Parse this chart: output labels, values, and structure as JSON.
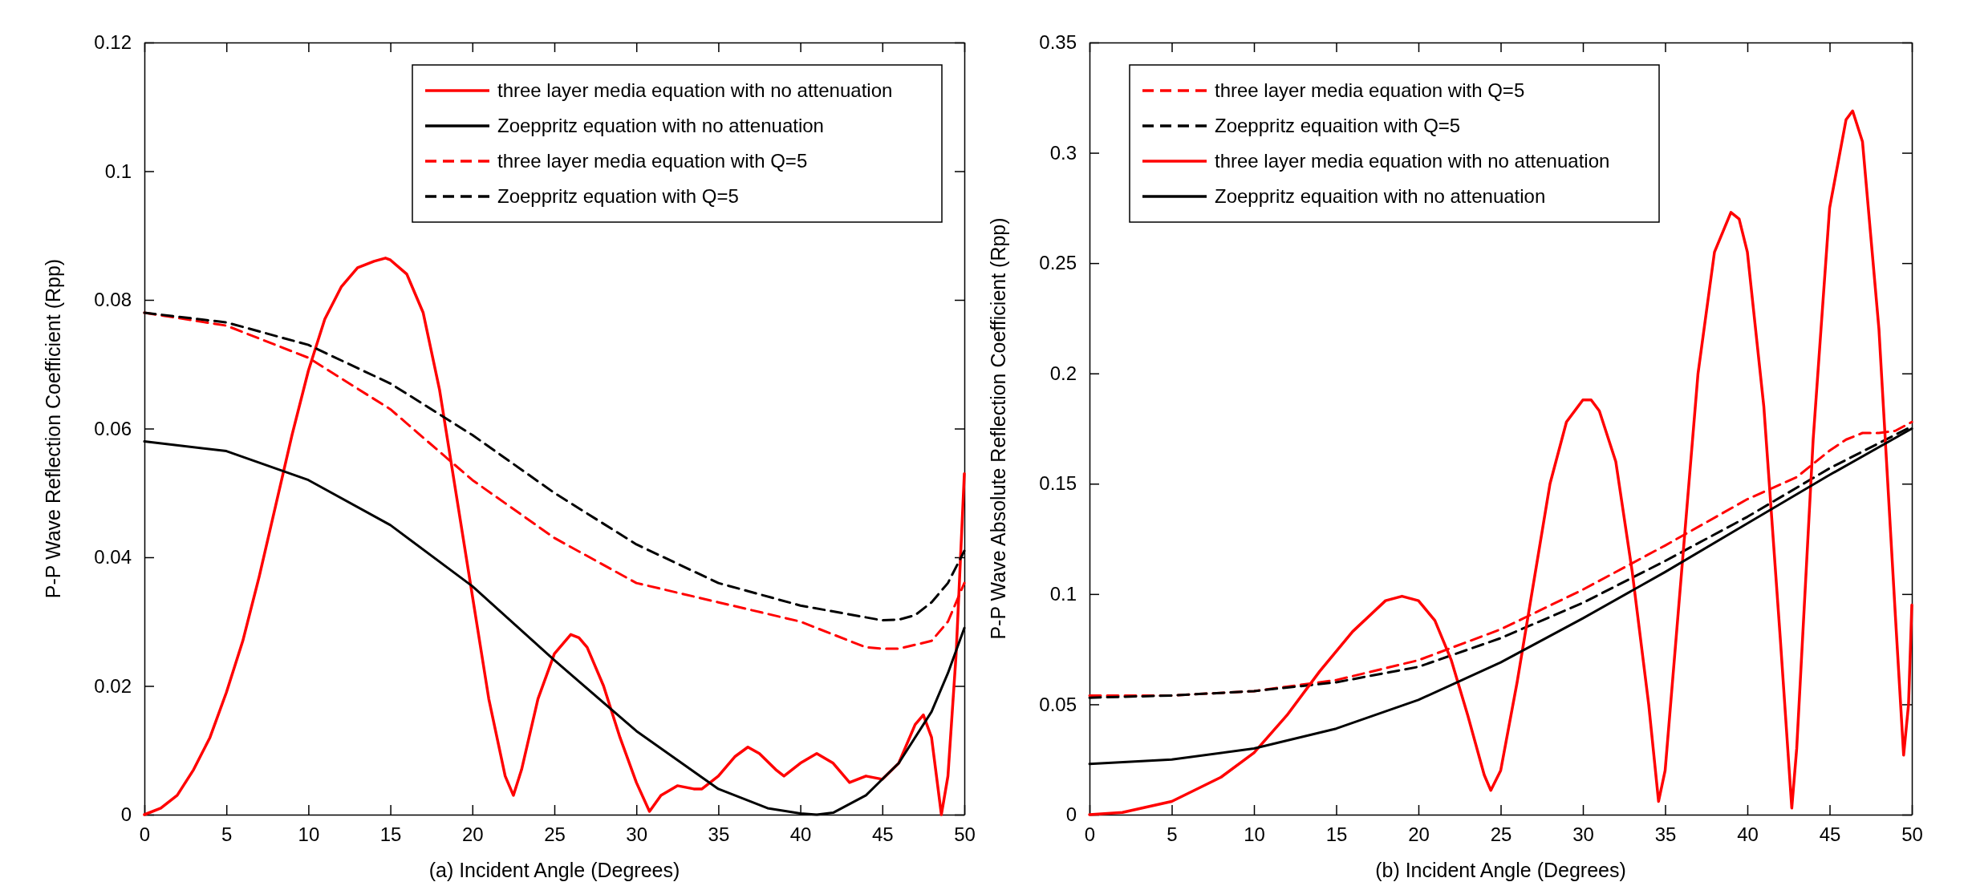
{
  "chart_data": [
    {
      "type": "line",
      "xlabel": "(a) Incident Angle (Degrees)",
      "ylabel": "P-P Wave Reflection Coefficient (Rpp)",
      "xlim": [
        0,
        50
      ],
      "xticks": [
        0,
        5,
        10,
        15,
        20,
        25,
        30,
        35,
        40,
        45,
        50
      ],
      "ylim": [
        0,
        0.12
      ],
      "yticks": [
        0,
        0.02,
        0.04,
        0.06,
        0.08,
        0.1,
        0.12
      ],
      "grid": false,
      "legend": "top right",
      "series": [
        {
          "name": "three layer media equation with no attenuation",
          "color": "#ff0000",
          "line_style": "solid",
          "x": [
            0,
            1,
            2,
            3,
            4,
            5,
            6,
            7,
            8,
            9,
            10,
            11,
            12,
            13,
            14,
            14.7,
            15,
            16,
            17,
            18,
            19,
            20,
            21,
            22,
            22.5,
            23,
            24,
            25,
            26,
            26.5,
            27,
            28,
            29,
            30,
            30.8,
            31.5,
            32.5,
            33.5,
            34,
            35,
            36,
            36.8,
            37.5,
            38.5,
            39,
            40,
            41,
            42,
            43,
            44,
            45,
            46,
            47,
            47.5,
            48,
            48.6,
            49,
            49.5,
            50
          ],
          "values": [
            0,
            0.001,
            0.003,
            0.007,
            0.012,
            0.019,
            0.027,
            0.037,
            0.048,
            0.059,
            0.069,
            0.077,
            0.082,
            0.085,
            0.086,
            0.0865,
            0.0862,
            0.084,
            0.078,
            0.066,
            0.05,
            0.034,
            0.018,
            0.006,
            0.003,
            0.007,
            0.018,
            0.025,
            0.028,
            0.0275,
            0.026,
            0.02,
            0.012,
            0.005,
            0.0005,
            0.003,
            0.0045,
            0.004,
            0.004,
            0.006,
            0.009,
            0.0105,
            0.0095,
            0.007,
            0.006,
            0.008,
            0.0095,
            0.008,
            0.005,
            0.006,
            0.0055,
            0.008,
            0.014,
            0.0155,
            0.012,
            0,
            0.006,
            0.025,
            0.053
          ]
        },
        {
          "name": "Zoeppritz equation with no attenuation",
          "color": "#000000",
          "line_style": "solid",
          "x": [
            0,
            5,
            10,
            15,
            20,
            25,
            30,
            35,
            38,
            40,
            41,
            42,
            44,
            46,
            48,
            49,
            50
          ],
          "values": [
            0.058,
            0.0565,
            0.052,
            0.045,
            0.0355,
            0.024,
            0.013,
            0.004,
            0.001,
            0.0002,
            0,
            0.0003,
            0.003,
            0.008,
            0.016,
            0.022,
            0.029
          ]
        },
        {
          "name": "three layer media equation with Q=5",
          "color": "#ff0000",
          "line_style": "dashed",
          "x": [
            0,
            5,
            10,
            15,
            20,
            25,
            30,
            35,
            40,
            42,
            44,
            45,
            46,
            48,
            49,
            50
          ],
          "values": [
            0.078,
            0.076,
            0.071,
            0.063,
            0.052,
            0.043,
            0.036,
            0.033,
            0.03,
            0.028,
            0.026,
            0.0258,
            0.0258,
            0.027,
            0.03,
            0.036
          ]
        },
        {
          "name": "Zoeppritz equation with Q=5",
          "color": "#000000",
          "line_style": "dashed",
          "x": [
            0,
            5,
            10,
            15,
            20,
            25,
            30,
            35,
            40,
            45,
            46,
            47,
            48,
            49,
            50
          ],
          "values": [
            0.078,
            0.0765,
            0.073,
            0.067,
            0.059,
            0.05,
            0.042,
            0.036,
            0.0325,
            0.0302,
            0.0303,
            0.031,
            0.033,
            0.036,
            0.041
          ]
        }
      ]
    },
    {
      "type": "line",
      "xlabel": "(b) Incident Angle (Degrees)",
      "ylabel": "P-P Wave Absolute Reflection Coefficient (Rpp)",
      "xlim": [
        0,
        50
      ],
      "xticks": [
        0,
        5,
        10,
        15,
        20,
        25,
        30,
        35,
        40,
        45,
        50
      ],
      "ylim": [
        0,
        0.35
      ],
      "yticks": [
        0,
        0.05,
        0.1,
        0.15,
        0.2,
        0.25,
        0.3,
        0.35
      ],
      "grid": false,
      "legend": "top left",
      "series": [
        {
          "name": "three layer media equation with Q=5",
          "color": "#ff0000",
          "line_style": "dashed",
          "x": [
            0,
            5,
            10,
            15,
            20,
            25,
            30,
            35,
            40,
            43,
            45,
            46,
            47,
            48,
            49,
            50
          ],
          "values": [
            0.054,
            0.054,
            0.056,
            0.061,
            0.07,
            0.084,
            0.102,
            0.122,
            0.143,
            0.153,
            0.165,
            0.17,
            0.173,
            0.173,
            0.174,
            0.178
          ]
        },
        {
          "name": "Zoeppritz equaition with Q=5",
          "color": "#000000",
          "line_style": "dashed",
          "x": [
            0,
            5,
            10,
            15,
            20,
            25,
            30,
            35,
            40,
            45,
            50
          ],
          "values": [
            0.053,
            0.054,
            0.056,
            0.06,
            0.067,
            0.08,
            0.096,
            0.115,
            0.135,
            0.157,
            0.176
          ]
        },
        {
          "name": "three layer media equation with no attenuation",
          "color": "#ff0000",
          "line_style": "solid",
          "x": [
            0,
            2,
            5,
            8,
            10,
            12,
            14,
            16,
            18,
            19,
            20,
            21,
            22,
            23,
            24,
            24.4,
            25,
            26,
            27,
            28,
            29,
            30,
            30.5,
            31,
            32,
            33,
            34,
            34.6,
            35,
            36,
            37,
            38,
            39,
            39.5,
            40,
            41,
            42,
            42.7,
            43,
            44,
            45,
            46,
            46.4,
            47,
            48,
            49,
            49.5,
            49.8,
            50
          ],
          "values": [
            0,
            0.001,
            0.006,
            0.017,
            0.028,
            0.045,
            0.065,
            0.083,
            0.097,
            0.099,
            0.097,
            0.088,
            0.07,
            0.045,
            0.018,
            0.011,
            0.02,
            0.06,
            0.105,
            0.15,
            0.178,
            0.188,
            0.188,
            0.183,
            0.16,
            0.11,
            0.05,
            0.006,
            0.02,
            0.11,
            0.2,
            0.255,
            0.273,
            0.27,
            0.255,
            0.185,
            0.08,
            0.003,
            0.03,
            0.17,
            0.275,
            0.315,
            0.319,
            0.305,
            0.22,
            0.09,
            0.027,
            0.05,
            0.095
          ]
        },
        {
          "name": "Zoeppritz equaition with no attenuation",
          "color": "#000000",
          "line_style": "solid",
          "x": [
            0,
            5,
            10,
            15,
            20,
            25,
            30,
            35,
            40,
            45,
            50
          ],
          "values": [
            0.023,
            0.025,
            0.03,
            0.039,
            0.052,
            0.069,
            0.089,
            0.11,
            0.132,
            0.154,
            0.175
          ]
        }
      ]
    }
  ]
}
